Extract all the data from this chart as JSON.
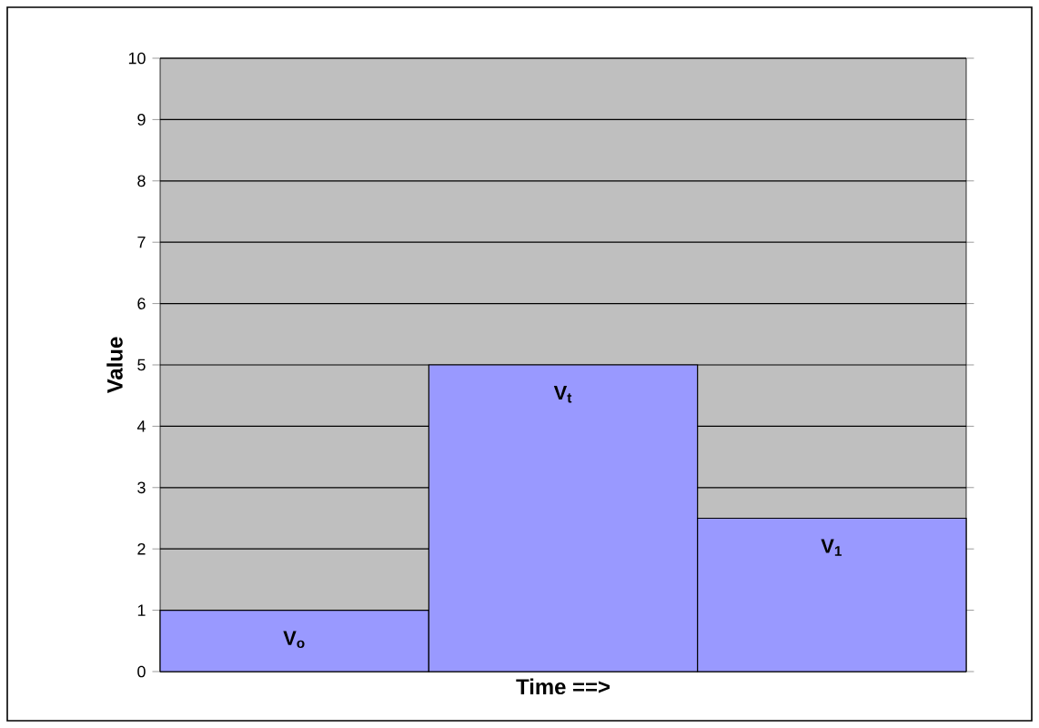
{
  "chart_data": {
    "type": "bar",
    "xlabel": "Time ==>",
    "ylabel": "Value",
    "categories": [
      "V$_{o}$",
      "V$_{t}$",
      "V$_{1}$"
    ],
    "values": [
      1,
      5,
      2.5
    ],
    "color": "#9999ff",
    "ylim": [
      0,
      10
    ],
    "yticks": [
      0,
      1,
      2,
      3,
      4,
      5,
      6,
      7,
      8,
      9,
      10
    ],
    "grid": "y"
  }
}
